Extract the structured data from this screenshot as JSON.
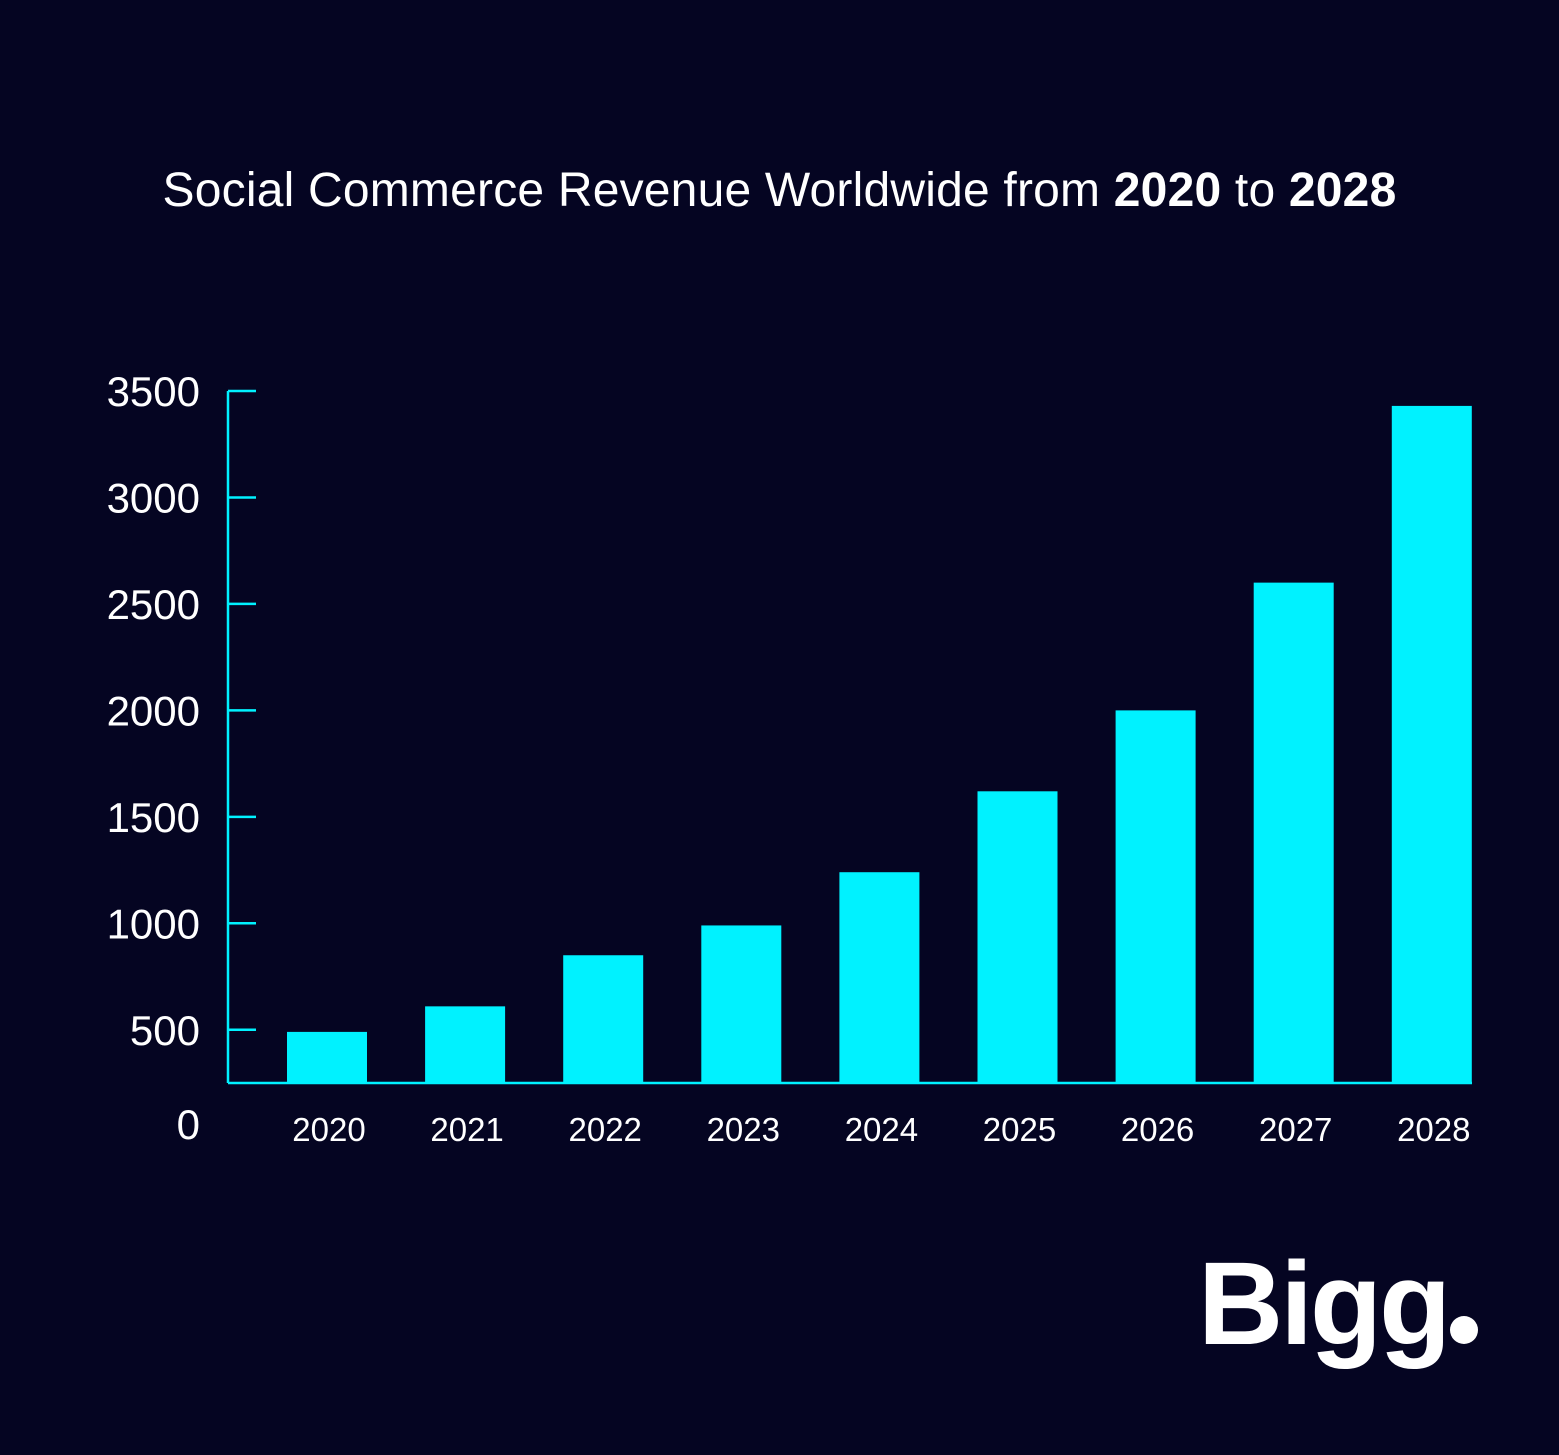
{
  "colors": {
    "background": "#050522",
    "accent": "#00f2ff",
    "text": "#ffffff"
  },
  "title": {
    "part1": "Social Commerce Revenue Worldwide from ",
    "year_start": "2020",
    "part2": " to ",
    "year_end": "2028"
  },
  "logo": {
    "text": "Bigg"
  },
  "chart_data": {
    "type": "bar",
    "title": "Social Commerce Revenue Worldwide from 2020 to 2028",
    "xlabel": "",
    "ylabel": "",
    "categories": [
      "2020",
      "2021",
      "2022",
      "2023",
      "2024",
      "2025",
      "2026",
      "2027",
      "2028"
    ],
    "values": [
      490,
      610,
      850,
      990,
      1240,
      1620,
      2000,
      2600,
      3430
    ],
    "y_ticks": [
      0,
      500,
      1000,
      1500,
      2000,
      2500,
      3000,
      3500
    ],
    "y_tick_labels": [
      "0",
      "500",
      "1000",
      "1500",
      "2000",
      "2500",
      "3000",
      "3500"
    ],
    "ylim": [
      250,
      3500
    ],
    "grid": false,
    "legend": "none"
  }
}
